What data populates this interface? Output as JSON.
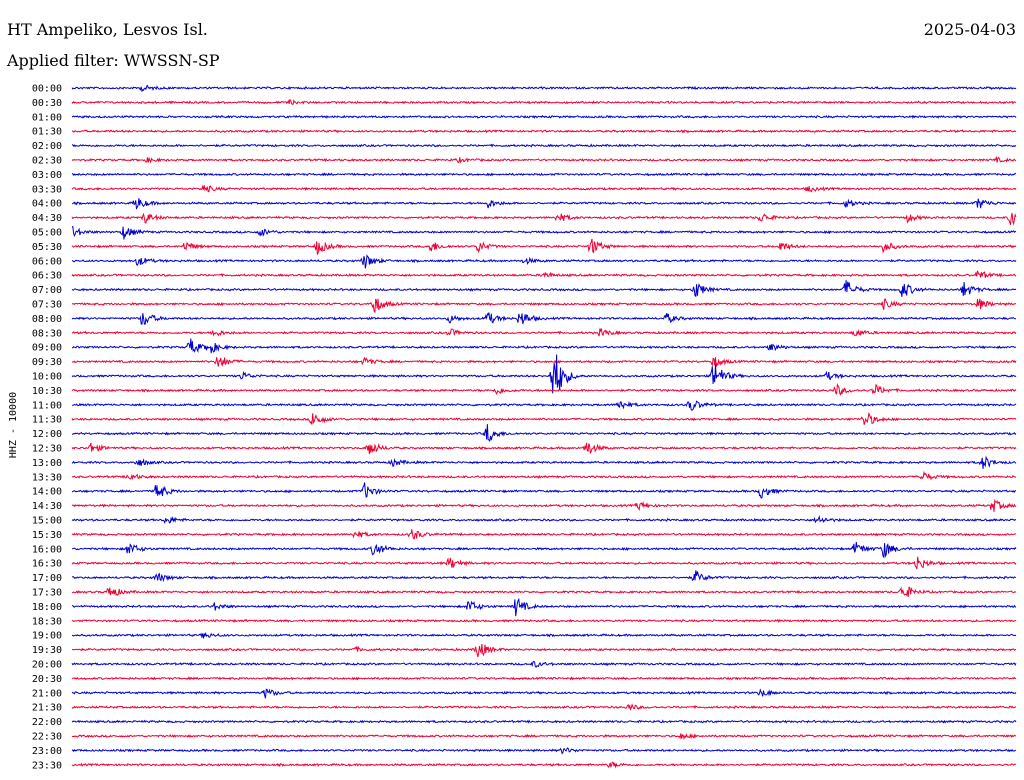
{
  "header": {
    "station": "HT Ampeliko, Lesvos Isl.",
    "date": "2025-04-03",
    "filter": "Applied filter: WWSSN-SP"
  },
  "chart_data": {
    "type": "line",
    "title": "HT Ampeliko, Lesvos Isl.",
    "ylabel": "HHZ - 10000",
    "colors": [
      "#0000cc",
      "#ee0033"
    ],
    "rows": [
      {
        "time": "00:00",
        "color": "#0000cc",
        "events": [
          {
            "t": 0.075,
            "a": 3
          }
        ]
      },
      {
        "time": "00:30",
        "color": "#ee0033",
        "events": [
          {
            "t": 0.23,
            "a": 2
          }
        ]
      },
      {
        "time": "01:00",
        "color": "#0000cc",
        "events": []
      },
      {
        "time": "01:30",
        "color": "#ee0033",
        "events": []
      },
      {
        "time": "02:00",
        "color": "#0000cc",
        "events": []
      },
      {
        "time": "02:30",
        "color": "#ee0033",
        "events": [
          {
            "t": 0.08,
            "a": 2
          },
          {
            "t": 0.41,
            "a": 2
          },
          {
            "t": 0.98,
            "a": 2
          }
        ]
      },
      {
        "time": "03:00",
        "color": "#0000cc",
        "events": []
      },
      {
        "time": "03:30",
        "color": "#ee0033",
        "events": [
          {
            "t": 0.14,
            "a": 4
          },
          {
            "t": 0.78,
            "a": 3
          }
        ]
      },
      {
        "time": "04:00",
        "color": "#0000cc",
        "events": [
          {
            "t": 0.068,
            "a": 7
          },
          {
            "t": 0.44,
            "a": 5
          },
          {
            "t": 0.82,
            "a": 4
          },
          {
            "t": 0.96,
            "a": 6
          }
        ]
      },
      {
        "time": "04:30",
        "color": "#ee0033",
        "events": [
          {
            "t": 0.077,
            "a": 6
          },
          {
            "t": 0.515,
            "a": 5
          },
          {
            "t": 0.73,
            "a": 5
          },
          {
            "t": 0.885,
            "a": 4
          },
          {
            "t": 0.995,
            "a": 9
          }
        ]
      },
      {
        "time": "05:00",
        "color": "#0000cc",
        "events": [
          {
            "t": 0.0,
            "a": 6
          },
          {
            "t": 0.055,
            "a": 7
          },
          {
            "t": 0.2,
            "a": 4
          }
        ]
      },
      {
        "time": "05:30",
        "color": "#ee0033",
        "events": [
          {
            "t": 0.12,
            "a": 5
          },
          {
            "t": 0.26,
            "a": 8
          },
          {
            "t": 0.38,
            "a": 6
          },
          {
            "t": 0.43,
            "a": 6
          },
          {
            "t": 0.55,
            "a": 9
          },
          {
            "t": 0.75,
            "a": 5
          },
          {
            "t": 0.86,
            "a": 6
          }
        ]
      },
      {
        "time": "06:00",
        "color": "#0000cc",
        "events": [
          {
            "t": 0.07,
            "a": 5
          },
          {
            "t": 0.31,
            "a": 8
          },
          {
            "t": 0.48,
            "a": 3
          }
        ]
      },
      {
        "time": "06:30",
        "color": "#ee0033",
        "events": [
          {
            "t": 0.5,
            "a": 3
          },
          {
            "t": 0.96,
            "a": 5
          }
        ]
      },
      {
        "time": "07:00",
        "color": "#0000cc",
        "events": [
          {
            "t": 0.66,
            "a": 9
          },
          {
            "t": 0.82,
            "a": 10
          },
          {
            "t": 0.88,
            "a": 9
          },
          {
            "t": 0.945,
            "a": 8
          }
        ]
      },
      {
        "time": "07:30",
        "color": "#ee0033",
        "events": [
          {
            "t": 0.32,
            "a": 10
          },
          {
            "t": 0.86,
            "a": 5
          },
          {
            "t": 0.96,
            "a": 6
          }
        ]
      },
      {
        "time": "08:00",
        "color": "#0000cc",
        "events": [
          {
            "t": 0.075,
            "a": 9
          },
          {
            "t": 0.4,
            "a": 4
          },
          {
            "t": 0.44,
            "a": 7
          },
          {
            "t": 0.475,
            "a": 9
          },
          {
            "t": 0.63,
            "a": 5
          }
        ]
      },
      {
        "time": "08:30",
        "color": "#ee0033",
        "events": [
          {
            "t": 0.15,
            "a": 4
          },
          {
            "t": 0.4,
            "a": 4
          },
          {
            "t": 0.56,
            "a": 4
          },
          {
            "t": 0.83,
            "a": 4
          }
        ]
      },
      {
        "time": "09:00",
        "color": "#0000cc",
        "events": [
          {
            "t": 0.125,
            "a": 9
          },
          {
            "t": 0.145,
            "a": 7
          },
          {
            "t": 0.74,
            "a": 4
          }
        ]
      },
      {
        "time": "09:30",
        "color": "#ee0033",
        "events": [
          {
            "t": 0.155,
            "a": 8
          },
          {
            "t": 0.31,
            "a": 4
          },
          {
            "t": 0.68,
            "a": 6
          }
        ]
      },
      {
        "time": "10:00",
        "color": "#0000cc",
        "events": [
          {
            "t": 0.51,
            "a": 34
          },
          {
            "t": 0.68,
            "a": 16
          },
          {
            "t": 0.18,
            "a": 4
          },
          {
            "t": 0.8,
            "a": 4
          }
        ]
      },
      {
        "time": "10:30",
        "color": "#ee0033",
        "events": [
          {
            "t": 0.45,
            "a": 4
          },
          {
            "t": 0.81,
            "a": 6
          },
          {
            "t": 0.85,
            "a": 6
          }
        ]
      },
      {
        "time": "11:00",
        "color": "#0000cc",
        "events": [
          {
            "t": 0.58,
            "a": 5
          },
          {
            "t": 0.655,
            "a": 7
          }
        ]
      },
      {
        "time": "11:30",
        "color": "#ee0033",
        "events": [
          {
            "t": 0.255,
            "a": 8
          },
          {
            "t": 0.84,
            "a": 9
          }
        ]
      },
      {
        "time": "12:00",
        "color": "#0000cc",
        "events": [
          {
            "t": 0.44,
            "a": 10
          }
        ]
      },
      {
        "time": "12:30",
        "color": "#ee0033",
        "events": [
          {
            "t": 0.02,
            "a": 5
          },
          {
            "t": 0.315,
            "a": 8
          },
          {
            "t": 0.545,
            "a": 8
          }
        ]
      },
      {
        "time": "13:00",
        "color": "#0000cc",
        "events": [
          {
            "t": 0.07,
            "a": 4
          },
          {
            "t": 0.34,
            "a": 4
          },
          {
            "t": 0.965,
            "a": 7
          }
        ]
      },
      {
        "time": "13:30",
        "color": "#ee0033",
        "events": [
          {
            "t": 0.06,
            "a": 4
          },
          {
            "t": 0.9,
            "a": 6
          }
        ]
      },
      {
        "time": "14:00",
        "color": "#0000cc",
        "events": [
          {
            "t": 0.09,
            "a": 9
          },
          {
            "t": 0.31,
            "a": 8
          },
          {
            "t": 0.73,
            "a": 7
          }
        ]
      },
      {
        "time": "14:30",
        "color": "#ee0033",
        "events": [
          {
            "t": 0.6,
            "a": 4
          },
          {
            "t": 0.975,
            "a": 7
          }
        ]
      },
      {
        "time": "15:00",
        "color": "#0000cc",
        "events": [
          {
            "t": 0.1,
            "a": 4
          },
          {
            "t": 0.79,
            "a": 4
          }
        ]
      },
      {
        "time": "15:30",
        "color": "#ee0033",
        "events": [
          {
            "t": 0.3,
            "a": 4
          },
          {
            "t": 0.36,
            "a": 6
          }
        ]
      },
      {
        "time": "16:00",
        "color": "#0000cc",
        "events": [
          {
            "t": 0.06,
            "a": 7
          },
          {
            "t": 0.32,
            "a": 8
          },
          {
            "t": 0.83,
            "a": 7
          },
          {
            "t": 0.86,
            "a": 9
          }
        ]
      },
      {
        "time": "16:30",
        "color": "#ee0033",
        "events": [
          {
            "t": 0.4,
            "a": 6
          },
          {
            "t": 0.895,
            "a": 8
          }
        ]
      },
      {
        "time": "17:00",
        "color": "#0000cc",
        "events": [
          {
            "t": 0.09,
            "a": 5
          },
          {
            "t": 0.66,
            "a": 7
          }
        ]
      },
      {
        "time": "17:30",
        "color": "#ee0033",
        "events": [
          {
            "t": 0.04,
            "a": 7
          },
          {
            "t": 0.88,
            "a": 9
          }
        ]
      },
      {
        "time": "18:00",
        "color": "#0000cc",
        "events": [
          {
            "t": 0.15,
            "a": 4
          },
          {
            "t": 0.42,
            "a": 7
          },
          {
            "t": 0.47,
            "a": 10
          }
        ]
      },
      {
        "time": "18:30",
        "color": "#ee0033",
        "events": []
      },
      {
        "time": "19:00",
        "color": "#0000cc",
        "events": [
          {
            "t": 0.14,
            "a": 3
          }
        ]
      },
      {
        "time": "19:30",
        "color": "#ee0033",
        "events": [
          {
            "t": 0.43,
            "a": 10
          },
          {
            "t": 0.3,
            "a": 2
          }
        ]
      },
      {
        "time": "20:00",
        "color": "#0000cc",
        "events": [
          {
            "t": 0.49,
            "a": 3
          }
        ]
      },
      {
        "time": "20:30",
        "color": "#ee0033",
        "events": []
      },
      {
        "time": "21:00",
        "color": "#0000cc",
        "events": [
          {
            "t": 0.205,
            "a": 5
          },
          {
            "t": 0.73,
            "a": 4
          }
        ]
      },
      {
        "time": "21:30",
        "color": "#ee0033",
        "events": [
          {
            "t": 0.59,
            "a": 3
          }
        ]
      },
      {
        "time": "22:00",
        "color": "#0000cc",
        "events": []
      },
      {
        "time": "22:30",
        "color": "#ee0033",
        "events": [
          {
            "t": 0.645,
            "a": 3
          }
        ]
      },
      {
        "time": "23:00",
        "color": "#0000cc",
        "events": [
          {
            "t": 0.52,
            "a": 3
          }
        ]
      },
      {
        "time": "23:30",
        "color": "#ee0033",
        "events": [
          {
            "t": 0.57,
            "a": 3
          }
        ]
      }
    ]
  }
}
